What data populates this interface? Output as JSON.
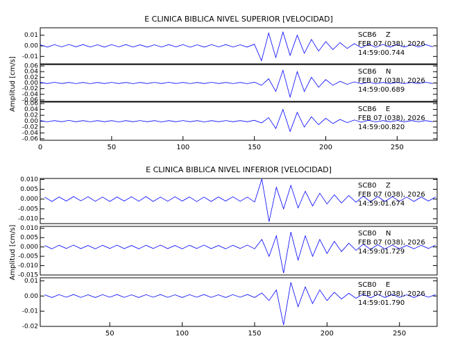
{
  "chart_data": [
    {
      "type": "line",
      "title": "E CLINICA BIBLICA NIVEL SUPERIOR [VELOCIDAD]",
      "y_label": "Amplitud [cm/s]",
      "xlim": [
        0,
        278
      ],
      "xticks": [
        0,
        50,
        100,
        150,
        200,
        250
      ],
      "color": "#0000ff",
      "x": [
        0,
        5,
        10,
        15,
        20,
        25,
        30,
        35,
        40,
        45,
        50,
        55,
        60,
        65,
        70,
        75,
        80,
        85,
        90,
        95,
        100,
        105,
        110,
        115,
        120,
        125,
        130,
        135,
        140,
        145,
        150,
        155,
        160,
        165,
        170,
        175,
        180,
        185,
        190,
        195,
        200,
        205,
        210,
        215,
        220,
        225,
        230,
        235,
        240,
        245,
        250,
        255,
        260,
        265,
        270,
        275
      ],
      "panels": [
        {
          "station": "SCB6",
          "component": "Z",
          "date": "FEB 07 (038), 2026",
          "time": "14:59:00.744",
          "ylim": [
            -0.017,
            0.017
          ],
          "yticks": [
            0.01,
            {
              "value": 0,
              "label": "0.00"
            },
            -0.01
          ],
          "values": [
            0.001,
            -0.0012,
            0.0011,
            -0.001,
            0.0013,
            -0.0009,
            0.0012,
            -0.0011,
            0.001,
            -0.0012,
            0.0011,
            -0.001,
            0.0012,
            -0.0011,
            0.0009,
            -0.0012,
            0.001,
            -0.0011,
            0.0012,
            -0.001,
            0.0011,
            -0.0013,
            0.001,
            -0.0012,
            0.0011,
            -0.001,
            0.0012,
            -0.0011,
            0.001,
            -0.0012,
            0.0015,
            -0.014,
            0.012,
            -0.011,
            0.013,
            -0.009,
            0.01,
            -0.007,
            0.006,
            -0.005,
            0.004,
            -0.0035,
            0.003,
            -0.0025,
            0.002,
            -0.0018,
            0.0016,
            -0.0014,
            0.0013,
            -0.0012,
            0.0011,
            -0.0012,
            0.001,
            -0.0011,
            0.0012,
            -0.001
          ]
        },
        {
          "station": "SCB6",
          "component": "N",
          "date": "FEB 07 (038), 2026",
          "time": "14:59:00.689",
          "ylim": [
            -0.065,
            0.065
          ],
          "yticks": [
            0.06,
            0.04,
            0.02,
            {
              "value": 0,
              "label": "0.00"
            },
            -0.02,
            -0.04,
            -0.06
          ],
          "values": [
            0.002,
            -0.002,
            0.0025,
            -0.002,
            0.002,
            -0.0022,
            0.002,
            -0.0025,
            0.002,
            -0.002,
            0.0022,
            -0.002,
            0.002,
            -0.0025,
            0.002,
            -0.002,
            0.0022,
            -0.002,
            0.0025,
            -0.002,
            0.002,
            -0.0022,
            0.002,
            -0.002,
            0.0025,
            -0.002,
            0.002,
            -0.0022,
            0.002,
            -0.0025,
            0.003,
            -0.008,
            0.015,
            -0.03,
            0.045,
            -0.05,
            0.04,
            -0.03,
            0.02,
            -0.015,
            0.012,
            -0.008,
            0.006,
            -0.005,
            0.004,
            -0.003,
            0.003,
            -0.0025,
            0.002,
            -0.002,
            0.002,
            -0.0022,
            0.002,
            -0.002,
            0.0025,
            -0.002
          ]
        },
        {
          "station": "SCB6",
          "component": "E",
          "date": "FEB 07 (038), 2026",
          "time": "14:59:00.820",
          "ylim": [
            -0.065,
            0.065
          ],
          "yticks": [
            0.06,
            0.04,
            0.02,
            {
              "value": 0,
              "label": "0.00"
            },
            -0.02,
            -0.04,
            -0.06
          ],
          "values": [
            0.002,
            -0.0022,
            0.002,
            -0.002,
            0.0025,
            -0.002,
            0.002,
            -0.0022,
            0.002,
            -0.002,
            0.002,
            -0.0025,
            0.002,
            -0.002,
            0.0022,
            -0.002,
            0.002,
            -0.0025,
            0.002,
            -0.002,
            0.0022,
            -0.002,
            0.002,
            -0.0025,
            0.002,
            -0.002,
            0.0022,
            -0.002,
            0.002,
            -0.002,
            0.003,
            -0.006,
            0.012,
            -0.025,
            0.04,
            -0.035,
            0.03,
            -0.02,
            0.015,
            -0.012,
            0.01,
            -0.008,
            0.006,
            -0.005,
            0.004,
            -0.0035,
            0.003,
            -0.0025,
            0.002,
            -0.002,
            0.0022,
            -0.002,
            0.002,
            -0.0022,
            0.002,
            -0.002
          ]
        }
      ]
    },
    {
      "type": "line",
      "title": "E CLINICA BIBLICA NIVEL INFERIOR [VELOCIDAD]",
      "y_label": "Amplitud [cm/s]",
      "xlim": [
        2,
        276
      ],
      "xticks": [
        50,
        100,
        150,
        200,
        250
      ],
      "color": "#0000ff",
      "x": [
        5,
        10,
        15,
        20,
        25,
        30,
        35,
        40,
        45,
        50,
        55,
        60,
        65,
        70,
        75,
        80,
        85,
        90,
        95,
        100,
        105,
        110,
        115,
        120,
        125,
        130,
        135,
        140,
        145,
        150,
        155,
        160,
        165,
        170,
        175,
        180,
        185,
        190,
        195,
        200,
        205,
        210,
        215,
        220,
        225,
        230,
        235,
        240,
        245,
        250,
        255,
        260,
        265,
        270,
        275
      ],
      "panels": [
        {
          "station": "SCB0",
          "component": "Z",
          "date": "FEB 07 (038), 2026",
          "time": "14:59:01.674",
          "ylim": [
            -0.0125,
            0.0105
          ],
          "yticks": [
            {
              "value": 0.01,
              "label": "0.010"
            },
            0.005,
            {
              "value": 0,
              "label": "0.000"
            },
            -0.005,
            {
              "value": -0.01,
              "label": "-0.010"
            }
          ],
          "values": [
            0.001,
            -0.0012,
            0.0011,
            -0.001,
            0.0013,
            -0.0009,
            0.0012,
            -0.0011,
            0.001,
            -0.0012,
            0.0011,
            -0.001,
            0.0012,
            -0.0011,
            0.0013,
            -0.0012,
            0.001,
            -0.0011,
            0.0012,
            -0.001,
            0.0011,
            -0.0013,
            0.001,
            -0.0012,
            0.0011,
            -0.001,
            0.0012,
            -0.0011,
            0.001,
            -0.0015,
            0.0102,
            -0.0115,
            0.006,
            -0.005,
            0.007,
            -0.0045,
            0.004,
            -0.0035,
            0.003,
            -0.0025,
            0.0022,
            -0.002,
            0.0018,
            -0.0016,
            0.0015,
            -0.0014,
            0.0013,
            -0.0012,
            0.0012,
            -0.0011,
            0.001,
            -0.0012,
            0.0011,
            -0.001,
            0.0011
          ]
        },
        {
          "station": "SCB0",
          "component": "N",
          "date": "FEB 07 (038), 2026",
          "time": "14:59:01.729",
          "ylim": [
            -0.015,
            0.011
          ],
          "yticks": [
            {
              "value": 0.01,
              "label": "0.010"
            },
            0.005,
            {
              "value": 0,
              "label": "0.000"
            },
            -0.005,
            {
              "value": -0.01,
              "label": "-0.010"
            },
            -0.015
          ],
          "values": [
            0.0008,
            -0.001,
            0.0009,
            -0.0008,
            0.001,
            -0.0009,
            0.0008,
            -0.001,
            0.0009,
            -0.0008,
            0.001,
            -0.0009,
            0.0008,
            -0.001,
            0.0009,
            -0.0008,
            0.001,
            -0.0009,
            0.0008,
            -0.001,
            0.0009,
            -0.0008,
            0.001,
            -0.0009,
            0.0008,
            -0.001,
            0.0009,
            -0.0008,
            0.001,
            -0.001,
            0.004,
            -0.005,
            0.006,
            -0.014,
            0.008,
            -0.007,
            0.006,
            -0.005,
            0.004,
            -0.0035,
            0.003,
            -0.0025,
            0.002,
            -0.0018,
            0.0015,
            -0.0013,
            0.0012,
            -0.001,
            0.001,
            -0.0009,
            0.0008,
            -0.001,
            0.0009,
            -0.0008,
            0.001
          ]
        },
        {
          "station": "SCB0",
          "component": "E",
          "date": "FEB 07 (038), 2026",
          "time": "14:59:01.790",
          "ylim": [
            -0.02,
            0.012
          ],
          "yticks": [
            0.01,
            {
              "value": 0,
              "label": "0.00"
            },
            -0.01,
            -0.02
          ],
          "values": [
            0.0008,
            -0.001,
            0.0009,
            -0.0008,
            0.001,
            -0.0009,
            0.0008,
            -0.001,
            0.0009,
            -0.0008,
            0.001,
            -0.0009,
            0.0008,
            -0.001,
            0.0009,
            -0.0008,
            0.001,
            -0.0009,
            0.0008,
            -0.001,
            0.0009,
            -0.0008,
            0.001,
            -0.0009,
            0.0008,
            -0.001,
            0.0009,
            -0.0008,
            0.001,
            -0.001,
            0.002,
            -0.003,
            0.004,
            -0.019,
            0.009,
            -0.007,
            0.006,
            -0.005,
            0.004,
            -0.003,
            0.0025,
            -0.002,
            0.0018,
            -0.0015,
            0.0013,
            -0.0012,
            0.0011,
            -0.001,
            0.001,
            -0.0009,
            0.0008,
            -0.001,
            0.0009,
            -0.0008,
            0.001
          ]
        }
      ]
    }
  ]
}
